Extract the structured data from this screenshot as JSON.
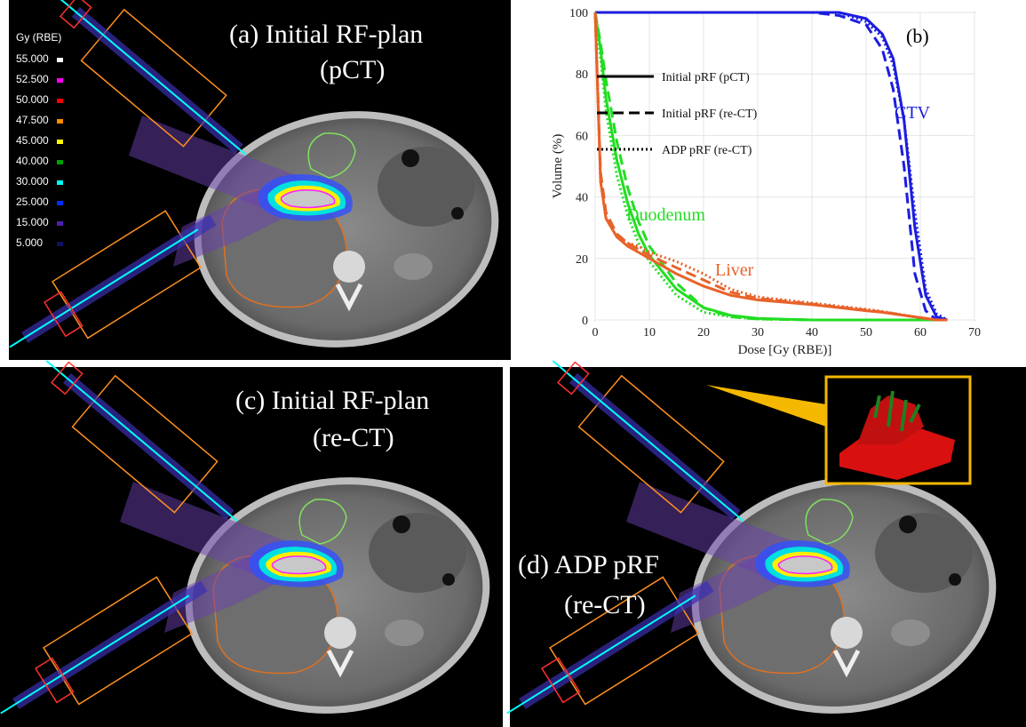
{
  "panels": {
    "a": {
      "lines": [
        "(a)   Initial RF-plan",
        "(pCT)"
      ],
      "dose_legend": {
        "title": "Gy (RBE)",
        "items": [
          {
            "label": "55.000",
            "color": "#ffffff"
          },
          {
            "label": "52.500",
            "color": "#ff00ff"
          },
          {
            "label": "50.000",
            "color": "#ff0000"
          },
          {
            "label": "47.500",
            "color": "#ff8c00"
          },
          {
            "label": "45.000",
            "color": "#ffff00"
          },
          {
            "label": "40.000",
            "color": "#00a000"
          },
          {
            "label": "30.000",
            "color": "#00ffff"
          },
          {
            "label": "25.000",
            "color": "#0030ff"
          },
          {
            "label": "15.000",
            "color": "#5020b0"
          },
          {
            "label": "5.000",
            "color": "#101060"
          }
        ]
      }
    },
    "c": {
      "lines": [
        "(c)  Initial RF-plan",
        "(re-CT)"
      ]
    },
    "d": {
      "lines": [
        "(d)   ADP pRF",
        "(re-CT)"
      ]
    }
  },
  "chart_data": {
    "type": "line",
    "panel_label": "(b)",
    "x_label": "Dose [Gy (RBE)]",
    "y_label": "Volume (%)",
    "xlim": [
      0,
      70
    ],
    "xticks": [
      0,
      10,
      20,
      30,
      40,
      50,
      60,
      70
    ],
    "ylim": [
      0,
      100
    ],
    "yticks": [
      0,
      20,
      40,
      60,
      80,
      100
    ],
    "grid": true,
    "x": [
      0,
      1,
      2,
      4,
      6,
      8,
      10,
      15,
      20,
      25,
      30,
      40,
      45,
      50,
      53,
      55,
      57,
      59,
      61,
      63,
      65
    ],
    "legend": [
      {
        "name": "Initial pRF (pCT)",
        "dash": "solid"
      },
      {
        "name": "Initial pRF (re-CT)",
        "dash": "dashed"
      },
      {
        "name": "ADP pRF (re-CT)",
        "dash": "dotted"
      }
    ],
    "groups": [
      {
        "name": "CTV",
        "color": "#1c1ce0",
        "series": [
          {
            "values": [
              100,
              100,
              100,
              100,
              100,
              100,
              100,
              100,
              100,
              100,
              100,
              100,
              100,
              98,
              93,
              85,
              65,
              30,
              8,
              1,
              0
            ]
          },
          {
            "values": [
              100,
              100,
              100,
              100,
              100,
              100,
              100,
              100,
              100,
              100,
              100,
              100,
              99,
              96,
              88,
              75,
              50,
              15,
              3,
              0,
              0
            ]
          },
          {
            "values": [
              100,
              100,
              100,
              100,
              100,
              100,
              100,
              100,
              100,
              100,
              100,
              100,
              100,
              97,
              92,
              83,
              65,
              35,
              10,
              2,
              0
            ]
          }
        ]
      },
      {
        "name": "Duodenum",
        "color": "#22dd22",
        "series": [
          {
            "values": [
              100,
              88,
              72,
              52,
              38,
              28,
              21,
              10,
              4,
              1.5,
              0.5,
              0,
              0,
              0,
              0,
              0,
              0,
              0,
              0,
              0,
              0
            ]
          },
          {
            "values": [
              100,
              90,
              78,
              58,
              43,
              32,
              24,
              12,
              4,
              1,
              0.3,
              0,
              0,
              0,
              0,
              0,
              0,
              0,
              0,
              0,
              0
            ]
          },
          {
            "values": [
              100,
              85,
              68,
              47,
              34,
              25,
              19,
              8,
              2.5,
              1,
              0.3,
              0,
              0,
              0,
              0,
              0,
              0,
              0,
              0,
              0,
              0
            ]
          }
        ]
      },
      {
        "name": "Liver",
        "color": "#e8622a",
        "series": [
          {
            "values": [
              100,
              45,
              33,
              27,
              24,
              22,
              20,
              15,
              11,
              8,
              6.5,
              5,
              4,
              3,
              2.5,
              2,
              1.5,
              1,
              0.5,
              0,
              0
            ]
          },
          {
            "values": [
              100,
              48,
              35,
              28,
              25,
              23,
              21,
              17,
              13,
              9,
              7,
              5.2,
              4.2,
              3.2,
              2.6,
              2.1,
              1.5,
              1,
              0.5,
              0,
              0
            ]
          },
          {
            "values": [
              100,
              45,
              33,
              27,
              25,
              24,
              22,
              19,
              15,
              10,
              7.5,
              5.5,
              4.5,
              3.5,
              2.8,
              2.2,
              1.6,
              1,
              0.5,
              0,
              0
            ]
          }
        ]
      }
    ]
  }
}
